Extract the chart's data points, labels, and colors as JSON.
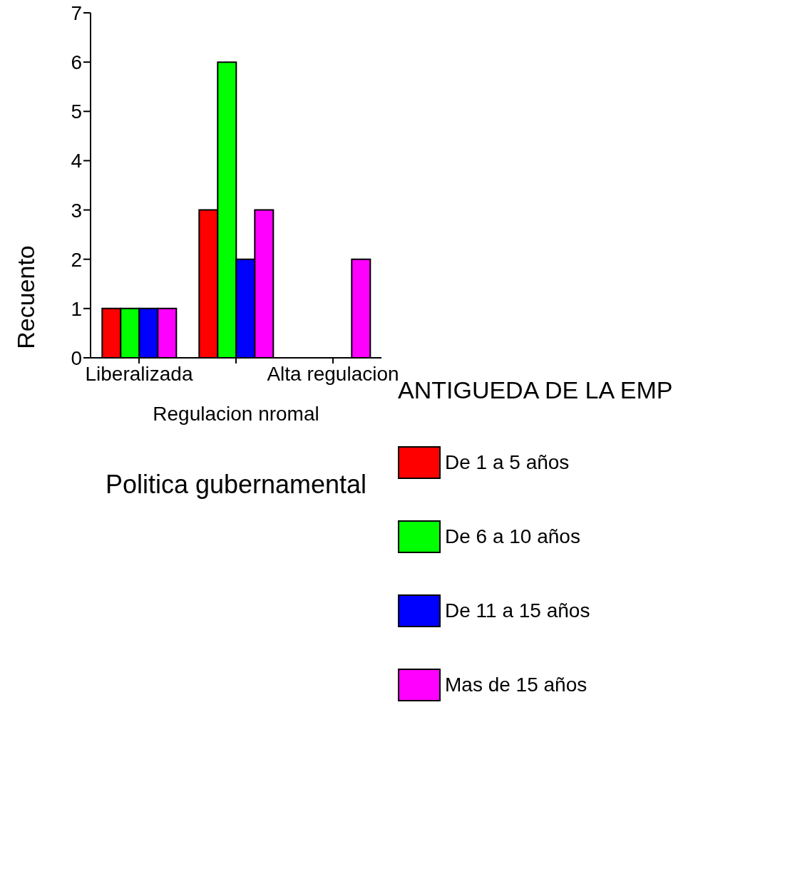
{
  "chart_data": {
    "type": "bar",
    "xlabel": "Politica gubernamental",
    "ylabel": "Recuento",
    "legend_title": "ANTIGUEDA DE LA EMP",
    "categories": [
      "Liberalizada",
      "Regulacion nromal",
      "Alta regulacion"
    ],
    "series": [
      {
        "name": "De 1 a 5 años",
        "color": "#ff0000",
        "values": [
          1,
          3,
          0
        ]
      },
      {
        "name": "De 6 a 10 años",
        "color": "#00ff00",
        "values": [
          1,
          6,
          0
        ]
      },
      {
        "name": "De 11 a 15 años",
        "color": "#0000ff",
        "values": [
          1,
          2,
          0
        ]
      },
      {
        "name": "Mas de 15 años",
        "color": "#ff00ff",
        "values": [
          1,
          3,
          2
        ]
      }
    ],
    "ylim": [
      0,
      7
    ],
    "yticks": [
      0,
      1,
      2,
      3,
      4,
      5,
      6,
      7
    ],
    "grid": false,
    "legend": "right"
  }
}
